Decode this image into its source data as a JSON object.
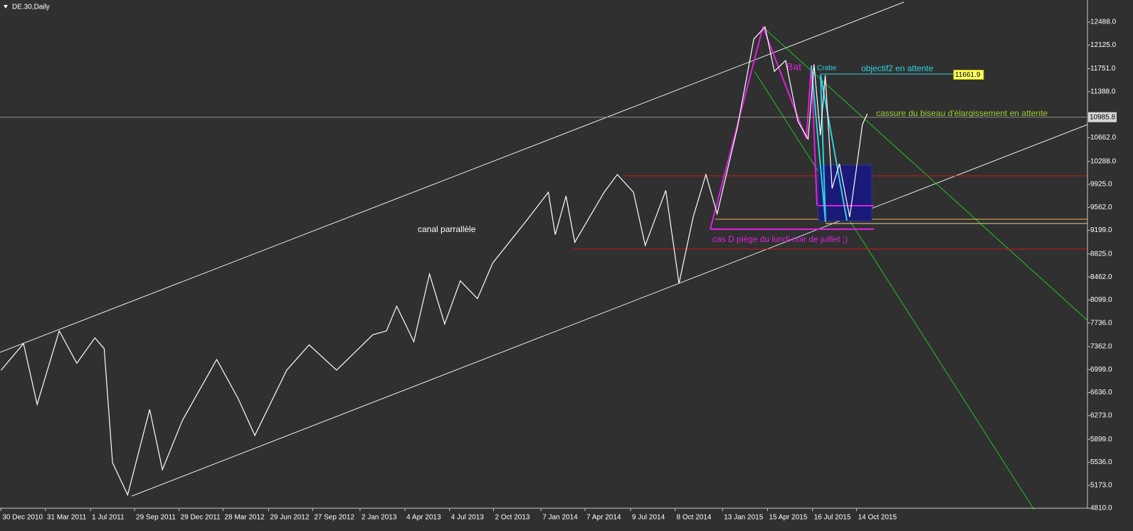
{
  "chart_data": {
    "type": "line",
    "title": "DE.30,Daily",
    "color": "#ffffff",
    "background": "#303030",
    "x": [
      "2010-12-30",
      "2011-02-14",
      "2011-03-14",
      "2011-04-28",
      "2011-06-03",
      "2011-07-10",
      "2011-07-29",
      "2011-08-15",
      "2011-09-15",
      "2011-10-30",
      "2011-11-25",
      "2012-01-05",
      "2012-03-15",
      "2012-04-28",
      "2012-06-01",
      "2012-08-05",
      "2012-09-20",
      "2012-11-15",
      "2013-01-28",
      "2013-02-25",
      "2013-03-18",
      "2013-04-22",
      "2013-05-24",
      "2013-06-24",
      "2013-07-26",
      "2013-08-30",
      "2013-09-30",
      "2013-12-08",
      "2014-01-22",
      "2014-02-05",
      "2014-02-27",
      "2014-03-17",
      "2014-05-16",
      "2014-06-12",
      "2014-07-15",
      "2014-08-08",
      "2014-09-19",
      "2014-10-16",
      "2014-11-14",
      "2014-12-10",
      "2015-01-02",
      "2015-02-12",
      "2015-03-18",
      "2015-04-10",
      "2015-04-29",
      "2015-05-22",
      "2015-06-16",
      "2015-07-07",
      "2015-07-19",
      "2015-08-01",
      "2015-08-11",
      "2015-08-25",
      "2015-09-09",
      "2015-09-30",
      "2015-10-12",
      "2015-10-26",
      "2015-11-05"
    ],
    "values": [
      6990,
      7410,
      6450,
      7610,
      7100,
      7500,
      7330,
      5530,
      5020,
      6370,
      5420,
      6200,
      7160,
      6540,
      5960,
      6990,
      7390,
      6990,
      7550,
      7610,
      8000,
      7440,
      8510,
      7720,
      8400,
      8120,
      8680,
      9350,
      9800,
      9130,
      9740,
      9010,
      9800,
      10080,
      9800,
      8960,
      9830,
      8360,
      9410,
      10080,
      9460,
      10810,
      12220,
      12410,
      11710,
      11880,
      10920,
      10640,
      11820,
      10700,
      11650,
      9860,
      10250,
      9410,
      10080,
      10870,
      11040
    ],
    "xlim": [
      "2010-12-28",
      "2017-01-28"
    ],
    "xticks": [
      {
        "value": "2010-12-30",
        "label": "30 Dec 2010"
      },
      {
        "value": "2011-03-31",
        "label": "31 Mar 2011"
      },
      {
        "value": "2011-07-01",
        "label": "1 Jul 2011"
      },
      {
        "value": "2011-09-29",
        "label": "29 Sep 2011"
      },
      {
        "value": "2011-12-29",
        "label": "29 Dec 2011"
      },
      {
        "value": "2012-03-28",
        "label": "28 Mar 2012"
      },
      {
        "value": "2012-06-29",
        "label": "29 Jun 2012"
      },
      {
        "value": "2012-09-27",
        "label": "27 Sep 2012"
      },
      {
        "value": "2013-01-02",
        "label": "2 Jan 2013"
      },
      {
        "value": "2013-04-04",
        "label": "4 Apr 2013"
      },
      {
        "value": "2013-07-04",
        "label": "4 Jul 2013"
      },
      {
        "value": "2013-10-02",
        "label": "2 Oct 2013"
      },
      {
        "value": "2014-01-07",
        "label": "7 Jan 2014"
      },
      {
        "value": "2014-04-07",
        "label": "7 Apr 2014"
      },
      {
        "value": "2014-07-09",
        "label": "9 Jul 2014"
      },
      {
        "value": "2014-10-08",
        "label": "8 Oct 2014"
      },
      {
        "value": "2015-01-13",
        "label": "13 Jan 2015"
      },
      {
        "value": "2015-04-15",
        "label": "15 Apr 2015"
      },
      {
        "value": "2015-07-16",
        "label": "16 Jul 2015"
      },
      {
        "value": "2015-10-14",
        "label": "14 Oct 2015"
      }
    ],
    "ylim": [
      4810,
      12488
    ],
    "yticks": [
      {
        "value": 12488,
        "label": "12488.0"
      },
      {
        "value": 12125,
        "label": "12125.0"
      },
      {
        "value": 11751,
        "label": "11751.0"
      },
      {
        "value": 11388,
        "label": "11388.0"
      },
      {
        "value": 10662,
        "label": "10662.0"
      },
      {
        "value": 10288,
        "label": "10288.0"
      },
      {
        "value": 9925,
        "label": "9925.0"
      },
      {
        "value": 9562,
        "label": "9562.0"
      },
      {
        "value": 9199,
        "label": "9199.0"
      },
      {
        "value": 8825,
        "label": "8825.0"
      },
      {
        "value": 8462,
        "label": "8462.0"
      },
      {
        "value": 8099,
        "label": "8099.0"
      },
      {
        "value": 7736,
        "label": "7736.0"
      },
      {
        "value": 7362,
        "label": "7362.0"
      },
      {
        "value": 6999,
        "label": "6999.0"
      },
      {
        "value": 6636,
        "label": "6636.0"
      },
      {
        "value": 6273,
        "label": "6273.0"
      },
      {
        "value": 5899,
        "label": "5899.0"
      },
      {
        "value": 5536,
        "label": "5536.0"
      },
      {
        "value": 5173,
        "label": "5173.0"
      },
      {
        "value": 4810,
        "label": "4810.0"
      }
    ],
    "last_price": 10985.8,
    "target": 11661.9,
    "annotations": [
      "canal parrallèle",
      "cas D piège du lundi noir de juillet ;)",
      "Bat",
      "Crabe",
      "objectif2 en attente",
      "cassure du biseau d'élargissement en attente"
    ]
  }
}
